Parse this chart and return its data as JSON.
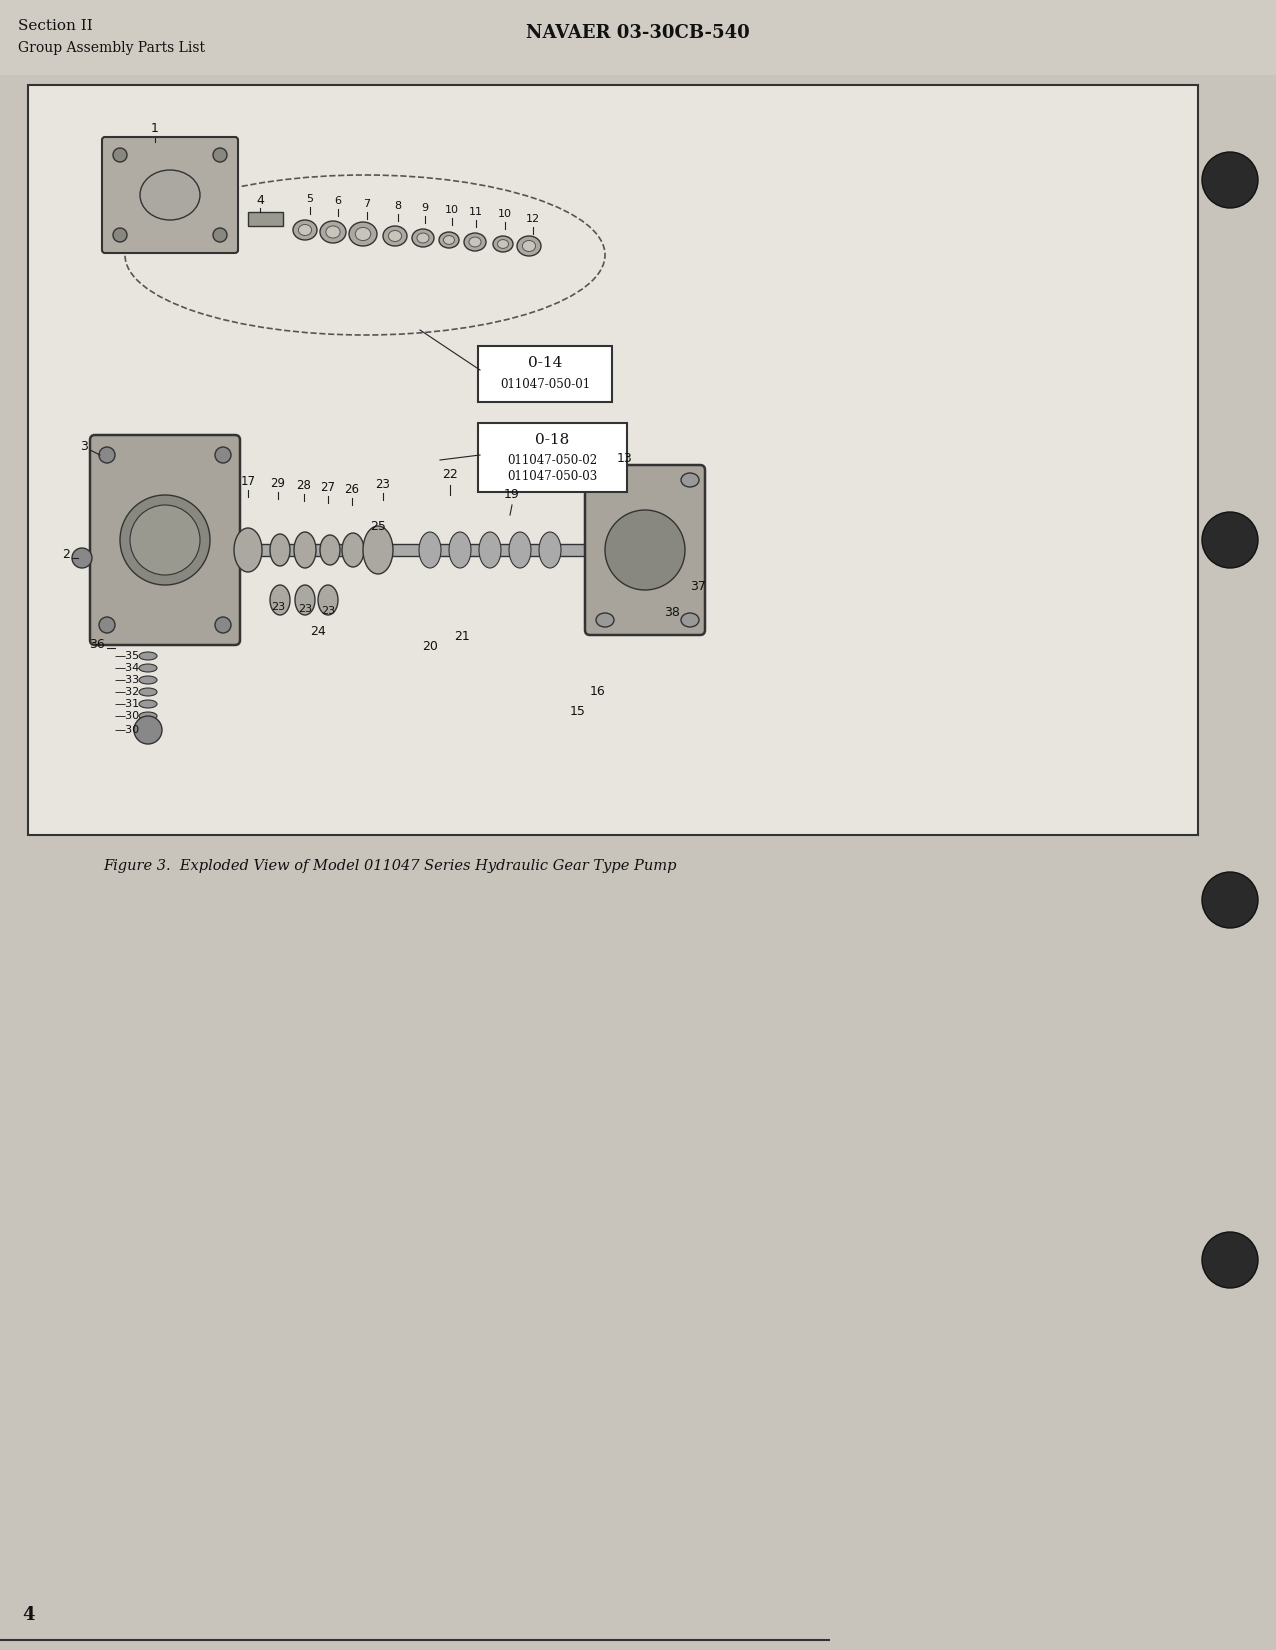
{
  "page_number": "4",
  "header_left_line1": "Section II",
  "header_left_line2": "Group Assembly Parts List",
  "header_center": "NAVAER 03-30CB-540",
  "figure_caption": "Figure 3.  Exploded View of Model 011047 Series Hydraulic Gear Type Pump",
  "callout_box1_title": "0-14",
  "callout_box1_sub": "011047-050-01",
  "callout_box2_title": "0-18",
  "callout_box2_sub1": "011047-050-02",
  "callout_box2_sub2": "011047-050-03",
  "bg_color": "#d8d4cc",
  "page_bg": "#c8c4bc",
  "border_color": "#555555",
  "text_color": "#111111",
  "diagram_bg": "#e8e4dc"
}
